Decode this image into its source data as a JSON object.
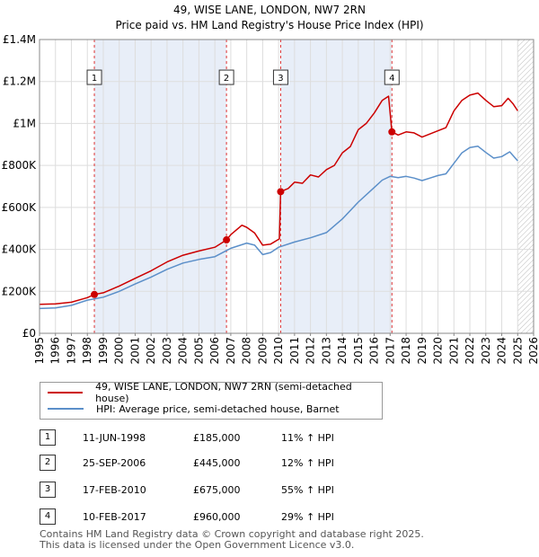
{
  "title_line1": "49, WISE LANE, LONDON, NW7 2RN",
  "title_line2": "Price paid vs. HM Land Registry's House Price Index (HPI)",
  "chart_data": {
    "type": "line",
    "x_range": [
      1995,
      2026
    ],
    "ylim": [
      0,
      1400000
    ],
    "y_ticks": [
      0,
      200000,
      400000,
      600000,
      800000,
      1000000,
      1200000,
      1400000
    ],
    "y_tick_labels": [
      "£0",
      "£200K",
      "£400K",
      "£600K",
      "£800K",
      "£1M",
      "£1.2M",
      "£1.4M"
    ],
    "x_ticks": [
      1995,
      1996,
      1997,
      1998,
      1999,
      2000,
      2001,
      2002,
      2003,
      2004,
      2005,
      2006,
      2007,
      2008,
      2009,
      2010,
      2011,
      2012,
      2013,
      2014,
      2015,
      2016,
      2017,
      2018,
      2019,
      2020,
      2021,
      2022,
      2023,
      2024,
      2025,
      2026
    ],
    "x_tick_labels": [
      "1995",
      "1996",
      "1997",
      "1998",
      "1999",
      "2000",
      "2001",
      "2002",
      "2003",
      "2004",
      "2005",
      "2006",
      "2007",
      "2008",
      "2009",
      "2010",
      "2011",
      "2012",
      "2013",
      "2014",
      "2015",
      "2016",
      "2017",
      "2018",
      "2019",
      "2020",
      "2021",
      "2022",
      "2023",
      "2024",
      "2025",
      "2026"
    ],
    "shaded_periods": [
      [
        1998.44,
        2006.73
      ],
      [
        2010.13,
        2017.11
      ]
    ],
    "hatched_from": 2025.0,
    "series": [
      {
        "name": "49, WISE LANE, LONDON, NW7 2RN (semi-detached house)",
        "color": "#cc0000",
        "points": [
          [
            1995,
            138000
          ],
          [
            1996,
            140000
          ],
          [
            1997,
            148000
          ],
          [
            1998,
            170000
          ],
          [
            1998.44,
            185000
          ],
          [
            1999,
            193000
          ],
          [
            2000,
            225000
          ],
          [
            2001,
            262000
          ],
          [
            2002,
            298000
          ],
          [
            2003,
            340000
          ],
          [
            2004,
            372000
          ],
          [
            2005,
            392000
          ],
          [
            2006,
            410000
          ],
          [
            2006.73,
            445000
          ],
          [
            2007,
            470000
          ],
          [
            2007.7,
            515000
          ],
          [
            2008,
            505000
          ],
          [
            2008.5,
            478000
          ],
          [
            2009,
            420000
          ],
          [
            2009.5,
            425000
          ],
          [
            2010.05,
            450000
          ],
          [
            2010.13,
            675000
          ],
          [
            2010.6,
            690000
          ],
          [
            2011,
            720000
          ],
          [
            2011.5,
            715000
          ],
          [
            2012,
            755000
          ],
          [
            2012.5,
            745000
          ],
          [
            2013,
            780000
          ],
          [
            2013.5,
            800000
          ],
          [
            2014,
            860000
          ],
          [
            2014.5,
            890000
          ],
          [
            2015,
            970000
          ],
          [
            2015.5,
            1000000
          ],
          [
            2016,
            1050000
          ],
          [
            2016.5,
            1110000
          ],
          [
            2016.9,
            1130000
          ],
          [
            2017.11,
            960000
          ],
          [
            2017.5,
            945000
          ],
          [
            2018,
            960000
          ],
          [
            2018.5,
            955000
          ],
          [
            2019,
            935000
          ],
          [
            2019.5,
            950000
          ],
          [
            2020,
            965000
          ],
          [
            2020.5,
            980000
          ],
          [
            2021,
            1060000
          ],
          [
            2021.5,
            1110000
          ],
          [
            2022,
            1135000
          ],
          [
            2022.5,
            1145000
          ],
          [
            2023,
            1110000
          ],
          [
            2023.5,
            1080000
          ],
          [
            2024,
            1085000
          ],
          [
            2024.4,
            1120000
          ],
          [
            2024.7,
            1095000
          ],
          [
            2025,
            1060000
          ]
        ]
      },
      {
        "name": "HPI: Average price, semi-detached house, Barnet",
        "color": "#5b8fc9",
        "points": [
          [
            1995,
            118000
          ],
          [
            1996,
            121000
          ],
          [
            1997,
            133000
          ],
          [
            1998,
            158000
          ],
          [
            1999,
            172000
          ],
          [
            2000,
            200000
          ],
          [
            2001,
            235000
          ],
          [
            2002,
            268000
          ],
          [
            2003,
            305000
          ],
          [
            2004,
            335000
          ],
          [
            2005,
            352000
          ],
          [
            2006,
            365000
          ],
          [
            2007,
            405000
          ],
          [
            2008,
            430000
          ],
          [
            2008.5,
            420000
          ],
          [
            2009,
            375000
          ],
          [
            2009.5,
            385000
          ],
          [
            2010,
            410000
          ],
          [
            2011,
            435000
          ],
          [
            2012,
            455000
          ],
          [
            2013,
            480000
          ],
          [
            2014,
            545000
          ],
          [
            2015,
            625000
          ],
          [
            2016,
            695000
          ],
          [
            2016.5,
            730000
          ],
          [
            2017,
            748000
          ],
          [
            2017.5,
            742000
          ],
          [
            2018,
            748000
          ],
          [
            2018.5,
            740000
          ],
          [
            2019,
            728000
          ],
          [
            2019.5,
            740000
          ],
          [
            2020,
            752000
          ],
          [
            2020.5,
            760000
          ],
          [
            2021,
            810000
          ],
          [
            2021.5,
            860000
          ],
          [
            2022,
            885000
          ],
          [
            2022.5,
            892000
          ],
          [
            2023,
            862000
          ],
          [
            2023.5,
            835000
          ],
          [
            2024,
            842000
          ],
          [
            2024.5,
            865000
          ],
          [
            2025,
            822000
          ]
        ]
      }
    ],
    "markers": [
      {
        "label": "1",
        "x": 1998.44,
        "y": 185000,
        "box_price": 1220000
      },
      {
        "label": "2",
        "x": 2006.73,
        "y": 445000,
        "box_price": 1220000
      },
      {
        "label": "3",
        "x": 2010.13,
        "y": 675000,
        "box_price": 1220000
      },
      {
        "label": "4",
        "x": 2017.11,
        "y": 960000,
        "box_price": 1220000
      }
    ]
  },
  "legend": {
    "property_label": "49, WISE LANE, LONDON, NW7 2RN (semi-detached house)",
    "hpi_label": "HPI: Average price, semi-detached house, Barnet",
    "property_color": "#cc0000",
    "hpi_color": "#5b8fc9"
  },
  "transactions": [
    {
      "num": "1",
      "date": "11-JUN-1998",
      "price": "£185,000",
      "hpi": "11% ↑ HPI"
    },
    {
      "num": "2",
      "date": "25-SEP-2006",
      "price": "£445,000",
      "hpi": "12% ↑ HPI"
    },
    {
      "num": "3",
      "date": "17-FEB-2010",
      "price": "£675,000",
      "hpi": "55% ↑ HPI"
    },
    {
      "num": "4",
      "date": "10-FEB-2017",
      "price": "£960,000",
      "hpi": "29% ↑ HPI"
    }
  ],
  "footer_line1": "Contains HM Land Registry data © Crown copyright and database right 2025.",
  "footer_line2": "This data is licensed under the Open Government Licence v3.0."
}
